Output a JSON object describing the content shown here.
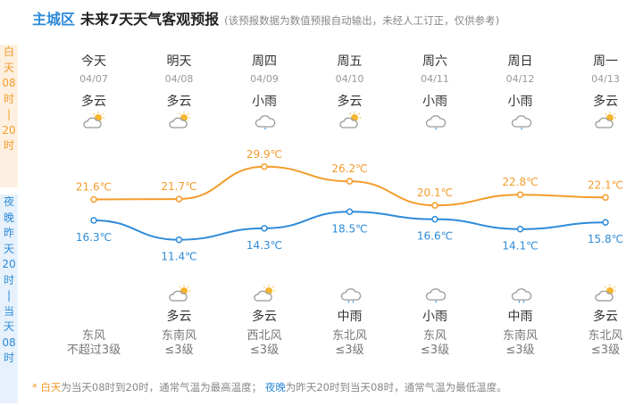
{
  "header": {
    "location": "主城区",
    "title": "未来7天天气客观预报",
    "note": "(该预报数据为数值预报自动输出，未经人工订正，仅供参考)"
  },
  "side": {
    "day": [
      "白",
      "天",
      "08",
      "时",
      "|",
      "20",
      "时"
    ],
    "night": [
      "夜",
      "晚",
      "昨",
      "天",
      "20",
      "时",
      "|",
      "当",
      "天",
      "08",
      "时"
    ]
  },
  "days": [
    {
      "week": "今天",
      "date": "04/07",
      "day_weather": "多云",
      "day_icon": "partly-cloudy",
      "night_icon": "none",
      "night_weather": "",
      "wind_dir": "东风",
      "wind_level": "不超过3级"
    },
    {
      "week": "明天",
      "date": "04/08",
      "day_weather": "多云",
      "day_icon": "partly-cloudy",
      "night_icon": "partly-cloudy",
      "night_weather": "多云",
      "wind_dir": "东南风",
      "wind_level": "≤3级"
    },
    {
      "week": "周四",
      "date": "04/09",
      "day_weather": "小雨",
      "day_icon": "light-rain",
      "night_icon": "partly-cloudy",
      "night_weather": "多云",
      "wind_dir": "西北风",
      "wind_level": "≤3级"
    },
    {
      "week": "周五",
      "date": "04/10",
      "day_weather": "多云",
      "day_icon": "partly-cloudy",
      "night_icon": "moderate-rain",
      "night_weather": "中雨",
      "wind_dir": "东北风",
      "wind_level": "≤3级"
    },
    {
      "week": "周六",
      "date": "04/11",
      "day_weather": "小雨",
      "day_icon": "light-rain",
      "night_icon": "light-rain",
      "night_weather": "小雨",
      "wind_dir": "东风",
      "wind_level": "≤3级"
    },
    {
      "week": "周日",
      "date": "04/12",
      "day_weather": "小雨",
      "day_icon": "light-rain",
      "night_icon": "moderate-rain",
      "night_weather": "中雨",
      "wind_dir": "东南风",
      "wind_level": "≤3级"
    },
    {
      "week": "周一",
      "date": "04/13",
      "day_weather": "多云",
      "day_icon": "partly-cloudy",
      "night_icon": "partly-cloudy",
      "night_weather": "多云",
      "wind_dir": "东北风",
      "wind_level": "≤3级"
    }
  ],
  "chart_data": {
    "type": "line",
    "categories": [
      "今天",
      "明天",
      "周四",
      "周五",
      "周六",
      "周日",
      "周一"
    ],
    "series": [
      {
        "values": [
          21.6,
          21.7,
          29.9,
          26.2,
          20.1,
          22.8,
          22.1
        ],
        "labels": [
          "21.6℃",
          "21.7℃",
          "29.9℃",
          "26.2℃",
          "20.1℃",
          "22.8℃",
          "22.1℃"
        ],
        "color": "#f39c2c"
      },
      {
        "values": [
          16.3,
          11.4,
          14.3,
          18.5,
          16.6,
          14.1,
          15.8
        ],
        "labels": [
          "16.3℃",
          "11.4℃",
          "14.3℃",
          "18.5℃",
          "16.6℃",
          "14.1℃",
          "15.8℃"
        ],
        "color": "#2e8bd8"
      }
    ]
  },
  "footer": {
    "star": "* ",
    "day_word": "白天",
    "day_text": "为当天08时到20时，通常气温为最高温度；",
    "night_word": "夜晚",
    "night_text": "为昨天20时到当天08时，通常气温为最低温度。"
  },
  "colors": {
    "day": "#f39c2c",
    "night": "#2e8bd8",
    "cloud": "#999999",
    "sun": "#f5b531",
    "rain": "#3a9be0"
  }
}
